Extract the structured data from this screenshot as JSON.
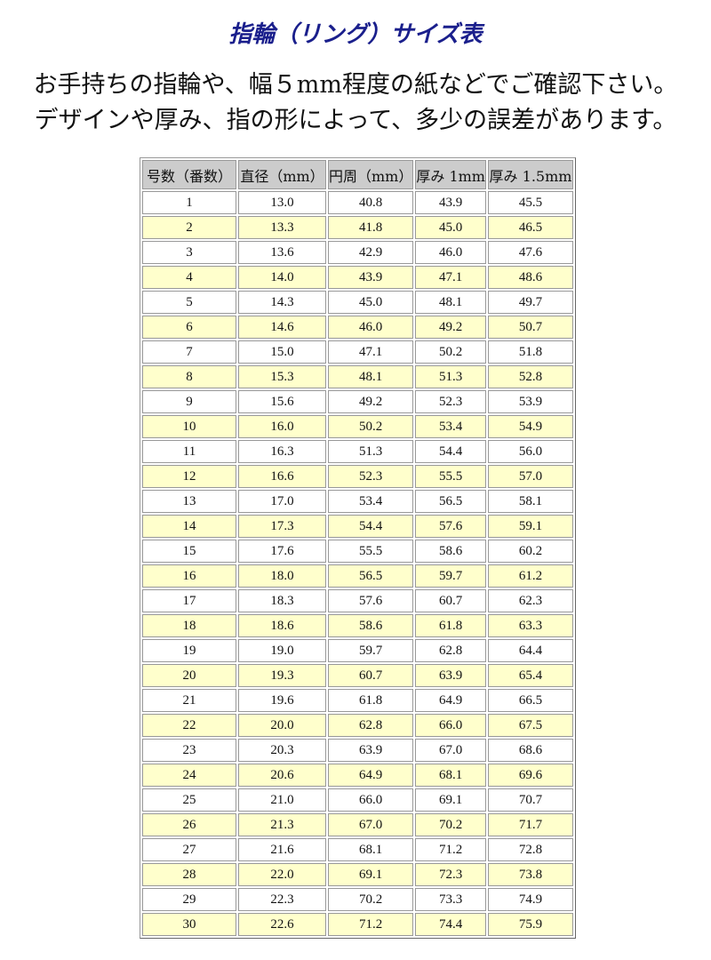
{
  "title": "指輪（リング）サイズ表",
  "intro": [
    "お手持ちの指輪や、幅５mm程度の紙などでご確認下さい。",
    "デザインや厚み、指の形によって、多少の誤差があります。"
  ],
  "colors": {
    "title": "#1a1f8c",
    "header_bg": "#cccccc",
    "stripe": "#ffffcc"
  },
  "table": {
    "headers": [
      "号数（番数）",
      "直径（mm）",
      "円周（mm）",
      "厚み 1mm",
      "厚み 1.5mm"
    ],
    "rows": [
      [
        "1",
        "13.0",
        "40.8",
        "43.9",
        "45.5"
      ],
      [
        "2",
        "13.3",
        "41.8",
        "45.0",
        "46.5"
      ],
      [
        "3",
        "13.6",
        "42.9",
        "46.0",
        "47.6"
      ],
      [
        "4",
        "14.0",
        "43.9",
        "47.1",
        "48.6"
      ],
      [
        "5",
        "14.3",
        "45.0",
        "48.1",
        "49.7"
      ],
      [
        "6",
        "14.6",
        "46.0",
        "49.2",
        "50.7"
      ],
      [
        "7",
        "15.0",
        "47.1",
        "50.2",
        "51.8"
      ],
      [
        "8",
        "15.3",
        "48.1",
        "51.3",
        "52.8"
      ],
      [
        "9",
        "15.6",
        "49.2",
        "52.3",
        "53.9"
      ],
      [
        "10",
        "16.0",
        "50.2",
        "53.4",
        "54.9"
      ],
      [
        "11",
        "16.3",
        "51.3",
        "54.4",
        "56.0"
      ],
      [
        "12",
        "16.6",
        "52.3",
        "55.5",
        "57.0"
      ],
      [
        "13",
        "17.0",
        "53.4",
        "56.5",
        "58.1"
      ],
      [
        "14",
        "17.3",
        "54.4",
        "57.6",
        "59.1"
      ],
      [
        "15",
        "17.6",
        "55.5",
        "58.6",
        "60.2"
      ],
      [
        "16",
        "18.0",
        "56.5",
        "59.7",
        "61.2"
      ],
      [
        "17",
        "18.3",
        "57.6",
        "60.7",
        "62.3"
      ],
      [
        "18",
        "18.6",
        "58.6",
        "61.8",
        "63.3"
      ],
      [
        "19",
        "19.0",
        "59.7",
        "62.8",
        "64.4"
      ],
      [
        "20",
        "19.3",
        "60.7",
        "63.9",
        "65.4"
      ],
      [
        "21",
        "19.6",
        "61.8",
        "64.9",
        "66.5"
      ],
      [
        "22",
        "20.0",
        "62.8",
        "66.0",
        "67.5"
      ],
      [
        "23",
        "20.3",
        "63.9",
        "67.0",
        "68.6"
      ],
      [
        "24",
        "20.6",
        "64.9",
        "68.1",
        "69.6"
      ],
      [
        "25",
        "21.0",
        "66.0",
        "69.1",
        "70.7"
      ],
      [
        "26",
        "21.3",
        "67.0",
        "70.2",
        "71.7"
      ],
      [
        "27",
        "21.6",
        "68.1",
        "71.2",
        "72.8"
      ],
      [
        "28",
        "22.0",
        "69.1",
        "72.3",
        "73.8"
      ],
      [
        "29",
        "22.3",
        "70.2",
        "73.3",
        "74.9"
      ],
      [
        "30",
        "22.6",
        "71.2",
        "74.4",
        "75.9"
      ]
    ]
  }
}
